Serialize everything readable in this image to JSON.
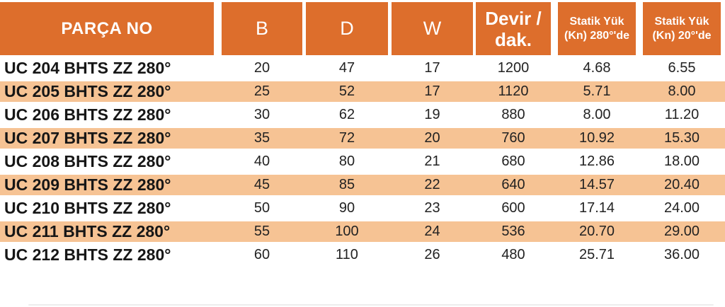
{
  "title": "UC BHTS ZZ 280° bearing specification table",
  "colors": {
    "header_bg": "#DD6E2C",
    "zebra_row_bg": "#F6C394",
    "header_text": "#FFFFFF",
    "body_text": "#1C1C1C"
  },
  "table": {
    "headers": [
      {
        "label": "PARÇA NO"
      },
      {
        "label": "B"
      },
      {
        "label": "D"
      },
      {
        "label": "W"
      },
      {
        "label": "Devir / dak.",
        "line1": "Devir /",
        "line2": "dak."
      },
      {
        "label": "Statik Yük (Kn) 280°'de",
        "line1": "Statik Yük",
        "line2": "(Kn) 280°'de"
      },
      {
        "label": "Statik Yük (Kn) 20°'de",
        "line1": "Statik Yük",
        "line2": "(Kn) 20°'de"
      }
    ],
    "rows": [
      {
        "part": "UC 204 BHTS ZZ 280°",
        "b": "20",
        "d": "47",
        "w": "17",
        "devir": "1200",
        "statik280": "4.68",
        "statik20": "6.55"
      },
      {
        "part": "UC 205 BHTS ZZ 280°",
        "b": "25",
        "d": "52",
        "w": "17",
        "devir": "1120",
        "statik280": "5.71",
        "statik20": "8.00"
      },
      {
        "part": "UC 206 BHTS ZZ 280°",
        "b": "30",
        "d": "62",
        "w": "19",
        "devir": "880",
        "statik280": "8.00",
        "statik20": "11.20"
      },
      {
        "part": "UC 207 BHTS ZZ 280°",
        "b": "35",
        "d": "72",
        "w": "20",
        "devir": "760",
        "statik280": "10.92",
        "statik20": "15.30"
      },
      {
        "part": "UC 208 BHTS ZZ 280°",
        "b": "40",
        "d": "80",
        "w": "21",
        "devir": "680",
        "statik280": "12.86",
        "statik20": "18.00"
      },
      {
        "part": "UC 209 BHTS ZZ 280°",
        "b": "45",
        "d": "85",
        "w": "22",
        "devir": "640",
        "statik280": "14.57",
        "statik20": "20.40"
      },
      {
        "part": "UC 210 BHTS ZZ 280°",
        "b": "50",
        "d": "90",
        "w": "23",
        "devir": "600",
        "statik280": "17.14",
        "statik20": "24.00"
      },
      {
        "part": "UC 211 BHTS ZZ 280°",
        "b": "55",
        "d": "100",
        "w": "24",
        "devir": "536",
        "statik280": "20.70",
        "statik20": "29.00"
      },
      {
        "part": "UC 212 BHTS ZZ 280°",
        "b": "60",
        "d": "110",
        "w": "26",
        "devir": "480",
        "statik280": "25.71",
        "statik20": "36.00"
      }
    ]
  }
}
